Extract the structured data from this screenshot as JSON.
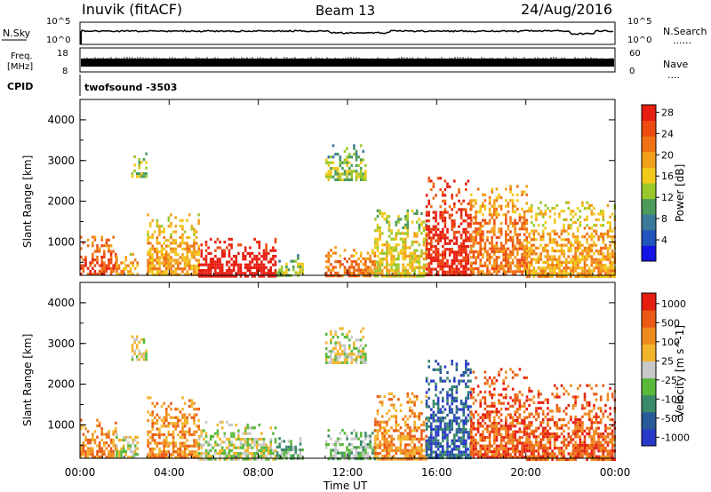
{
  "header": {
    "station": "Inuvik (fitACF)",
    "beam": "Beam 13",
    "date": "24/Aug/2016"
  },
  "strips": {
    "nsky": {
      "label": "N.Sky",
      "tick_top": "10^5",
      "tick_bottom": "10^0"
    },
    "nsearch": {
      "label": "N.Search",
      "legend": "......",
      "tick_top": "10^5",
      "tick_bottom": "10^0"
    },
    "freq": {
      "label_line1": "Freq.",
      "label_line2": "[MHz]",
      "ticks": [
        "18",
        "8"
      ]
    },
    "nave": {
      "label": "Nave",
      "legend": "....",
      "ticks": [
        "60",
        "0"
      ]
    },
    "cpid": {
      "label": "CPID",
      "value": "twofsound -3503"
    }
  },
  "chart_data": [
    {
      "type": "heatmap",
      "title": "Power",
      "ylabel": "Slant Range [km]",
      "xlabel": "Time UT",
      "x_ticks": [
        "00:00",
        "04:00",
        "08:00",
        "12:00",
        "16:00",
        "20:00",
        "00:00"
      ],
      "xlim_hours": [
        0,
        24
      ],
      "y_ticks": [
        "1000",
        "2000",
        "3000",
        "4000"
      ],
      "ylim": [
        180,
        4500
      ],
      "colorbar": {
        "label": "Power [dB]",
        "ticks": [
          "4",
          "8",
          "12",
          "16",
          "20",
          "24",
          "28"
        ],
        "colors": [
          "#1414e6",
          "#2255bb",
          "#3a7a9a",
          "#4a9a5a",
          "#9ac82a",
          "#f2c81a",
          "#f2a01a",
          "#ef7214",
          "#ec4a10",
          "#e61e10"
        ]
      },
      "regions": [
        {
          "t0": 0.0,
          "t1": 1.6,
          "r0": 180,
          "r1": 1150,
          "level": 7
        },
        {
          "t0": 1.6,
          "t1": 2.6,
          "r0": 180,
          "r1": 800,
          "level": 5
        },
        {
          "t0": 2.3,
          "t1": 3.0,
          "r0": 2600,
          "r1": 3200,
          "level": 3
        },
        {
          "t0": 3.0,
          "t1": 5.3,
          "r0": 180,
          "r1": 1700,
          "level": 5
        },
        {
          "t0": 5.3,
          "t1": 8.8,
          "r0": 180,
          "r1": 1100,
          "level": 9
        },
        {
          "t0": 8.8,
          "t1": 10.0,
          "r0": 180,
          "r1": 700,
          "level": 3
        },
        {
          "t0": 11.0,
          "t1": 13.2,
          "r0": 180,
          "r1": 900,
          "level": 6
        },
        {
          "t0": 11.0,
          "t1": 12.8,
          "r0": 2500,
          "r1": 3400,
          "level": 3
        },
        {
          "t0": 13.2,
          "t1": 15.5,
          "r0": 180,
          "r1": 1800,
          "level": 4
        },
        {
          "t0": 15.5,
          "t1": 17.5,
          "r0": 180,
          "r1": 2600,
          "level": 8
        },
        {
          "t0": 17.5,
          "t1": 20.0,
          "r0": 180,
          "r1": 2400,
          "level": 6
        },
        {
          "t0": 20.0,
          "t1": 24.0,
          "r0": 180,
          "r1": 2000,
          "level": 5
        }
      ]
    },
    {
      "type": "heatmap",
      "title": "Velocity",
      "ylabel": "Slant Range [km]",
      "xlabel": "Time UT",
      "x_ticks": [
        "00:00",
        "04:00",
        "08:00",
        "12:00",
        "16:00",
        "20:00",
        "00:00"
      ],
      "xlim_hours": [
        0,
        24
      ],
      "y_ticks": [
        "1000",
        "2000",
        "3000",
        "4000"
      ],
      "ylim": [
        180,
        4500
      ],
      "colorbar": {
        "label": "Velocity [m s^-1]",
        "ticks": [
          "1000",
          "500",
          "100",
          "25",
          "-25",
          "-100",
          "-500",
          "-1000"
        ],
        "colors": [
          "#2a3ac8",
          "#2a5a9a",
          "#3a8a6a",
          "#5ab83a",
          "#c8c8c8",
          "#f2b42a",
          "#ef8a1e",
          "#ea5a14",
          "#e61e10"
        ]
      },
      "regions": [
        {
          "t0": 0.0,
          "t1": 1.6,
          "r0": 180,
          "r1": 1150,
          "level": 6
        },
        {
          "t0": 1.6,
          "t1": 2.6,
          "r0": 180,
          "r1": 800,
          "level": 4
        },
        {
          "t0": 2.3,
          "t1": 3.0,
          "r0": 2600,
          "r1": 3200,
          "level": 4
        },
        {
          "t0": 3.0,
          "t1": 5.3,
          "r0": 180,
          "r1": 1700,
          "level": 6
        },
        {
          "t0": 5.3,
          "t1": 8.8,
          "r0": 180,
          "r1": 1100,
          "level": 4
        },
        {
          "t0": 8.8,
          "t1": 10.0,
          "r0": 180,
          "r1": 700,
          "level": 3
        },
        {
          "t0": 11.0,
          "t1": 13.2,
          "r0": 180,
          "r1": 900,
          "level": 3
        },
        {
          "t0": 11.0,
          "t1": 12.8,
          "r0": 2500,
          "r1": 3400,
          "level": 4
        },
        {
          "t0": 13.2,
          "t1": 15.5,
          "r0": 180,
          "r1": 1800,
          "level": 6
        },
        {
          "t0": 15.5,
          "t1": 17.5,
          "r0": 180,
          "r1": 2600,
          "level": 1
        },
        {
          "t0": 17.5,
          "t1": 20.0,
          "r0": 180,
          "r1": 2400,
          "level": 7
        },
        {
          "t0": 20.0,
          "t1": 24.0,
          "r0": 180,
          "r1": 2000,
          "level": 7
        }
      ]
    }
  ]
}
